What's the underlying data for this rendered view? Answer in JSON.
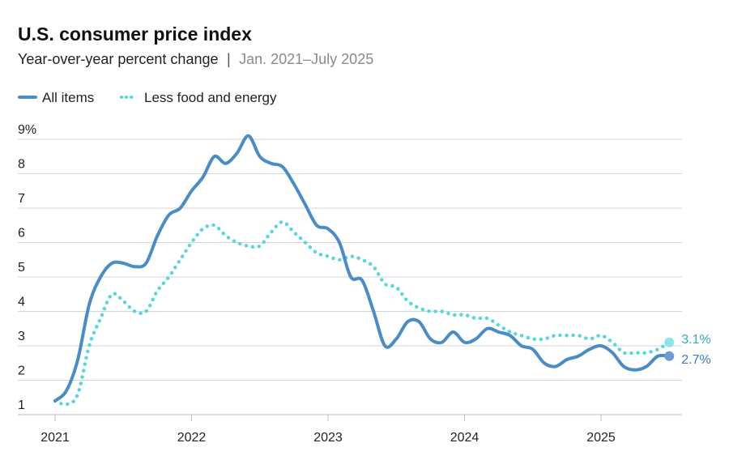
{
  "colors": {
    "all_items": "#4a8cc7",
    "core": "#5ad6dd",
    "end_dot_all": "#6d9bd4",
    "end_dot_core": "#8ee4e8",
    "label_all": "#3e7bb8",
    "label_core": "#3aa8b8"
  },
  "chart_data": {
    "type": "line",
    "title": "U.S. consumer price index",
    "subtitle": {
      "main": "Year-over-year percent change",
      "separator": "|",
      "range": "Jan. 2021–July 2025"
    },
    "xlabel": "",
    "ylabel": "",
    "x_start": "2021-01",
    "x_end": "2025-07",
    "x_tick_labels": [
      "2021",
      "2022",
      "2023",
      "2024",
      "2025"
    ],
    "y_tick_labels": [
      "9%",
      "8",
      "7",
      "6",
      "5",
      "4",
      "3",
      "2",
      "1"
    ],
    "ylim": [
      1,
      9
    ],
    "grid": true,
    "legend_position": "top-left",
    "series": [
      {
        "name": "All items",
        "style": "solid",
        "end_label": "2.7%",
        "values": [
          1.4,
          1.7,
          2.6,
          4.2,
          5.0,
          5.4,
          5.4,
          5.3,
          5.4,
          6.2,
          6.8,
          7.0,
          7.5,
          7.9,
          8.5,
          8.3,
          8.6,
          9.1,
          8.5,
          8.3,
          8.2,
          7.7,
          7.1,
          6.5,
          6.4,
          6.0,
          5.0,
          4.9,
          4.0,
          3.0,
          3.2,
          3.7,
          3.7,
          3.2,
          3.1,
          3.4,
          3.1,
          3.2,
          3.5,
          3.4,
          3.3,
          3.0,
          2.9,
          2.5,
          2.4,
          2.6,
          2.7,
          2.9,
          3.0,
          2.8,
          2.4,
          2.3,
          2.4,
          2.7,
          2.7
        ]
      },
      {
        "name": "Less food and energy",
        "style": "dotted",
        "end_label": "3.1%",
        "values": [
          1.4,
          1.3,
          1.6,
          3.0,
          3.8,
          4.5,
          4.3,
          4.0,
          4.0,
          4.6,
          5.0,
          5.5,
          6.0,
          6.4,
          6.5,
          6.2,
          6.0,
          5.9,
          5.9,
          6.3,
          6.6,
          6.3,
          6.0,
          5.7,
          5.6,
          5.5,
          5.6,
          5.5,
          5.3,
          4.8,
          4.7,
          4.3,
          4.1,
          4.0,
          4.0,
          3.9,
          3.9,
          3.8,
          3.8,
          3.6,
          3.4,
          3.3,
          3.2,
          3.2,
          3.3,
          3.3,
          3.3,
          3.2,
          3.3,
          3.1,
          2.8,
          2.8,
          2.8,
          2.9,
          3.1
        ]
      }
    ]
  }
}
